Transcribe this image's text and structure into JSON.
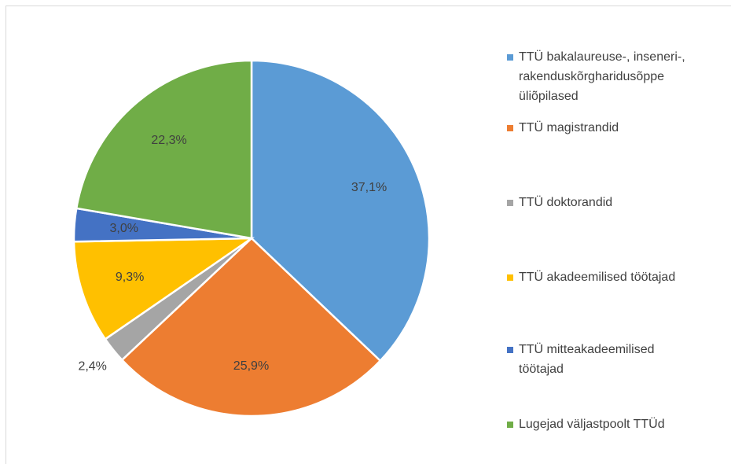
{
  "chart_data": {
    "type": "pie",
    "categories": [
      "TTÜ bakalaureuse-, inseneri-, rakenduskõrgharidusõppe üliõpilased",
      "TTÜ magistrandid",
      "TTÜ doktorandid",
      "TTÜ akadeemilised töötajad",
      "TTÜ mitteakadeemilised töötajad",
      "Lugejad väljastpoolt TTÜd"
    ],
    "values": [
      37.1,
      25.9,
      2.4,
      9.3,
      3.0,
      22.3
    ],
    "value_labels": [
      "37,1%",
      "25,9%",
      "2,4%",
      "9,3%",
      "3,0%",
      "22,3%"
    ],
    "colors": [
      "#5b9bd5",
      "#ed7d31",
      "#a5a5a5",
      "#ffc000",
      "#4472c4",
      "#70ad47"
    ],
    "legend": "right"
  }
}
